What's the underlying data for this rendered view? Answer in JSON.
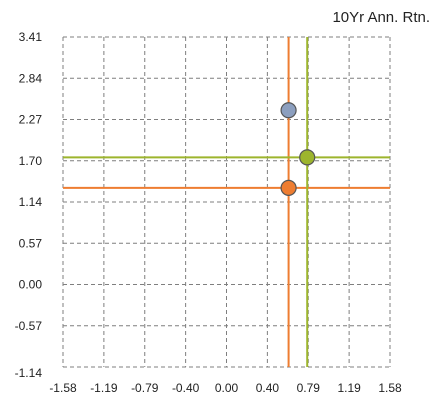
{
  "chart_data": {
    "type": "scatter",
    "title": "",
    "axis_title_y": "10Yr Ann. Rtn.",
    "x_tick_labels": [
      "-1.58",
      "-1.19",
      "-0.79",
      "-0.40",
      "0.00",
      "0.40",
      "0.79",
      "1.19",
      "1.58"
    ],
    "y_tick_labels": [
      "3.41",
      "2.84",
      "2.27",
      "1.70",
      "1.14",
      "0.57",
      "0.00",
      "-0.57",
      "-1.14"
    ],
    "xlim": [
      -1.58,
      1.58
    ],
    "ylim": [
      -1.14,
      3.41
    ],
    "grid": true,
    "grid_style": "dashed",
    "points": [
      {
        "x": 0.6,
        "y": 2.4,
        "color": "#8c9fbf"
      },
      {
        "x": 0.78,
        "y": 1.75,
        "color": "#9db52d"
      },
      {
        "x": 0.6,
        "y": 1.33,
        "color": "#ee7d31"
      }
    ],
    "reference_lines": [
      {
        "orientation": "vertical",
        "value": 0.6,
        "color": "#ee7d31"
      },
      {
        "orientation": "horizontal",
        "value": 1.33,
        "color": "#ee7d31"
      },
      {
        "orientation": "vertical",
        "value": 0.78,
        "color": "#9db52d"
      },
      {
        "orientation": "horizontal",
        "value": 1.75,
        "color": "#9db52d"
      }
    ]
  }
}
